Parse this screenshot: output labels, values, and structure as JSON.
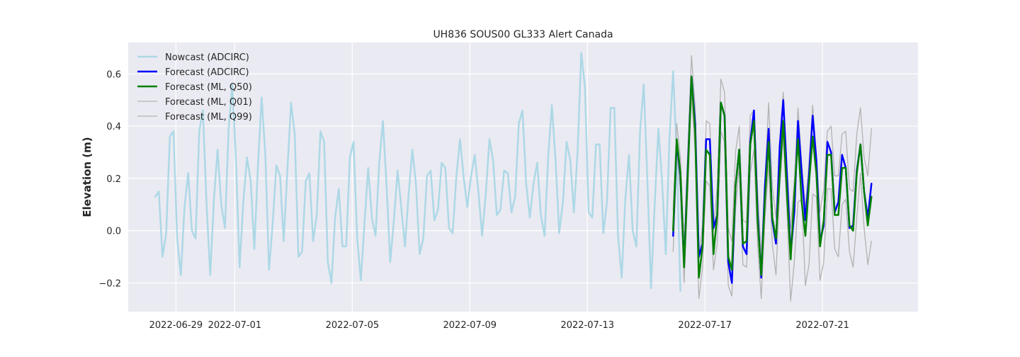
{
  "chart_data": {
    "type": "line",
    "title": "UH836 SOUS00 GL333 Alert Canada",
    "xlabel": "",
    "ylabel": "Elevation (m)",
    "x_type": "date",
    "xlim": [
      "2022-06-27T09:00",
      "2022-07-24T06:00"
    ],
    "ylim": [
      -0.31,
      0.72
    ],
    "x_ticks": [
      "2022-06-29",
      "2022-07-01",
      "2022-07-05",
      "2022-07-09",
      "2022-07-13",
      "2022-07-17",
      "2022-07-21"
    ],
    "y_ticks": [
      -0.2,
      0.0,
      0.2,
      0.4,
      0.6
    ],
    "y_tick_labels": [
      "−0.2",
      "0.0",
      "0.2",
      "0.4",
      "0.6"
    ],
    "grid": true,
    "legend_position": "top-left",
    "background": "#eaeaf2",
    "series": [
      {
        "name": "Nowcast (ADCIRC)",
        "color": "#add8e6",
        "width": 2.5,
        "x_start": "2022-06-28T07:00",
        "x_step_hours": 3,
        "values": [
          0.13,
          0.15,
          -0.1,
          -0.01,
          0.36,
          0.38,
          -0.03,
          -0.17,
          0.09,
          0.22,
          0.0,
          -0.03,
          0.38,
          0.46,
          0.1,
          -0.17,
          0.12,
          0.31,
          0.1,
          0.01,
          0.39,
          0.56,
          0.27,
          -0.14,
          0.11,
          0.28,
          0.19,
          -0.07,
          0.25,
          0.51,
          0.29,
          -0.15,
          0.03,
          0.25,
          0.21,
          -0.04,
          0.23,
          0.49,
          0.37,
          -0.1,
          -0.08,
          0.19,
          0.22,
          -0.04,
          0.06,
          0.38,
          0.34,
          -0.12,
          -0.2,
          0.05,
          0.16,
          -0.06,
          -0.06,
          0.28,
          0.34,
          -0.03,
          -0.19,
          0.03,
          0.24,
          0.05,
          -0.02,
          0.26,
          0.42,
          0.17,
          -0.12,
          0.04,
          0.23,
          0.09,
          -0.06,
          0.14,
          0.31,
          0.18,
          -0.09,
          -0.03,
          0.21,
          0.23,
          0.04,
          0.08,
          0.26,
          0.24,
          0.01,
          -0.01,
          0.21,
          0.35,
          0.2,
          0.09,
          0.21,
          0.29,
          0.15,
          -0.02,
          0.14,
          0.35,
          0.27,
          0.06,
          0.08,
          0.23,
          0.22,
          0.07,
          0.13,
          0.41,
          0.46,
          0.18,
          0.05,
          0.18,
          0.26,
          0.06,
          -0.02,
          0.28,
          0.48,
          0.27,
          -0.01,
          0.11,
          0.34,
          0.27,
          0.07,
          0.3,
          0.68,
          0.55,
          0.07,
          0.05,
          0.33,
          0.33,
          -0.01,
          0.11,
          0.47,
          0.47,
          -0.02,
          -0.18,
          0.12,
          0.29,
          0.0,
          -0.06,
          0.38,
          0.56,
          0.19,
          -0.22,
          0.1,
          0.39,
          0.19,
          -0.09,
          0.35,
          0.61,
          0.29,
          -0.23
        ]
      },
      {
        "name": "Forecast (ADCIRC)",
        "color": "#0000ff",
        "width": 2.5,
        "x_start": "2022-07-15T22:00",
        "x_step_hours": 3,
        "values": [
          -0.02,
          0.34,
          0.21,
          -0.13,
          0.24,
          0.59,
          0.41,
          -0.1,
          -0.05,
          0.35,
          0.35,
          0.01,
          0.06,
          0.49,
          0.44,
          -0.12,
          -0.2,
          0.17,
          0.31,
          -0.06,
          -0.09,
          0.34,
          0.46,
          0.07,
          -0.18,
          0.17,
          0.39,
          0.04,
          -0.05,
          0.32,
          0.5,
          0.21,
          -0.09,
          0.07,
          0.42,
          0.22,
          0.04,
          0.21,
          0.44,
          0.27,
          -0.04,
          0.02,
          0.34,
          0.3,
          0.07,
          0.11,
          0.29,
          0.24,
          0.01,
          0.02,
          0.23,
          0.33,
          0.15,
          0.05,
          0.18
        ]
      },
      {
        "name": "Forecast (ML, Q50)",
        "color": "#008000",
        "width": 2.5,
        "x_start": "2022-07-15T22:00",
        "x_step_hours": 3,
        "values": [
          0.0,
          0.35,
          0.22,
          -0.14,
          0.22,
          0.59,
          0.38,
          -0.18,
          -0.06,
          0.31,
          0.29,
          -0.09,
          0.06,
          0.49,
          0.44,
          -0.1,
          -0.15,
          0.17,
          0.31,
          -0.05,
          -0.04,
          0.33,
          0.42,
          0.04,
          -0.17,
          0.12,
          0.34,
          0.05,
          -0.03,
          0.21,
          0.42,
          0.14,
          -0.11,
          0.14,
          0.35,
          0.11,
          -0.02,
          0.18,
          0.36,
          0.22,
          -0.06,
          0.04,
          0.29,
          0.29,
          0.06,
          0.06,
          0.24,
          0.24,
          0.02,
          0.0,
          0.22,
          0.33,
          0.15,
          0.02,
          0.13
        ]
      },
      {
        "name": "Forecast (ML, Q01)",
        "color": "#b2b2b2",
        "width": 1.3,
        "x_start": "2022-07-15T22:00",
        "x_step_hours": 3,
        "values": [
          -0.08,
          0.3,
          0.15,
          -0.2,
          0.15,
          0.52,
          0.3,
          -0.26,
          -0.14,
          0.19,
          0.17,
          -0.15,
          -0.05,
          0.38,
          0.34,
          -0.21,
          -0.25,
          0.08,
          0.25,
          -0.13,
          -0.14,
          0.22,
          0.31,
          -0.05,
          -0.26,
          0.04,
          0.25,
          -0.05,
          -0.17,
          0.16,
          0.36,
          0.08,
          -0.27,
          -0.12,
          0.11,
          0.12,
          -0.21,
          -0.13,
          0.14,
          0.13,
          -0.19,
          -0.12,
          0.16,
          0.16,
          -0.07,
          -0.1,
          0.1,
          0.12,
          -0.08,
          -0.14,
          0.05,
          0.22,
          0.01,
          -0.13,
          -0.04
        ]
      },
      {
        "name": "Forecast (ML, Q99)",
        "color": "#b2b2b2",
        "width": 1.3,
        "x_start": "2022-07-15T22:00",
        "x_step_hours": 3,
        "values": [
          0.08,
          0.41,
          0.28,
          -0.05,
          0.3,
          0.67,
          0.47,
          -0.1,
          0.02,
          0.42,
          0.41,
          0.0,
          0.17,
          0.58,
          0.53,
          0.01,
          -0.04,
          0.3,
          0.4,
          0.04,
          0.03,
          0.44,
          0.46,
          0.16,
          -0.1,
          0.19,
          0.49,
          0.17,
          0.05,
          0.34,
          0.53,
          0.25,
          0.01,
          0.19,
          0.47,
          0.26,
          0.09,
          0.26,
          0.48,
          0.29,
          0.07,
          0.16,
          0.38,
          0.4,
          0.21,
          0.21,
          0.37,
          0.38,
          0.16,
          0.15,
          0.37,
          0.47,
          0.28,
          0.21,
          0.39
        ]
      }
    ]
  }
}
